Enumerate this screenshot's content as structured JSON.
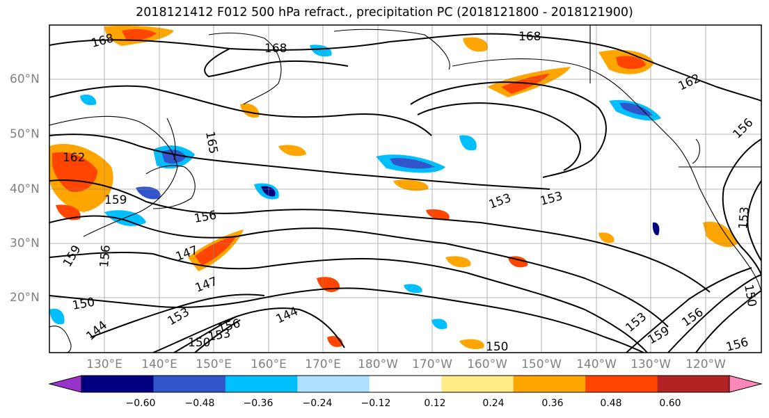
{
  "title": "2018121412 F012 500 hPa refract., precipitation PC (2018121800 - 2018121900)",
  "map": {
    "lat_labels": [
      "60°N",
      "50°N",
      "40°N",
      "30°N",
      "20°N"
    ],
    "lon_labels": [
      "130°E",
      "140°E",
      "150°E",
      "160°E",
      "170°E",
      "180°W",
      "170°W",
      "160°W",
      "150°W",
      "140°W",
      "130°W",
      "120°W"
    ],
    "contour_labels": [
      "168",
      "168",
      "168",
      "162",
      "162",
      "165",
      "159",
      "156",
      "159",
      "156",
      "147",
      "147",
      "153",
      "153",
      "153",
      "150",
      "144",
      "144",
      "153",
      "150",
      "156",
      "153",
      "159",
      "156",
      "156",
      "156",
      "153",
      "150",
      "150"
    ]
  },
  "colorbar": {
    "tick_labels": [
      "−0.60",
      "−0.48",
      "−0.36",
      "−0.24",
      "−0.12",
      "0.12",
      "0.24",
      "0.36",
      "0.48",
      "0.60"
    ],
    "colors": [
      "#9933cc",
      "#000080",
      "#3355cc",
      "#00bfff",
      "#b0e0ff",
      "#ffffff",
      "#ffee88",
      "#ffa500",
      "#ff4500",
      "#b22222",
      "#ff88bb"
    ]
  }
}
